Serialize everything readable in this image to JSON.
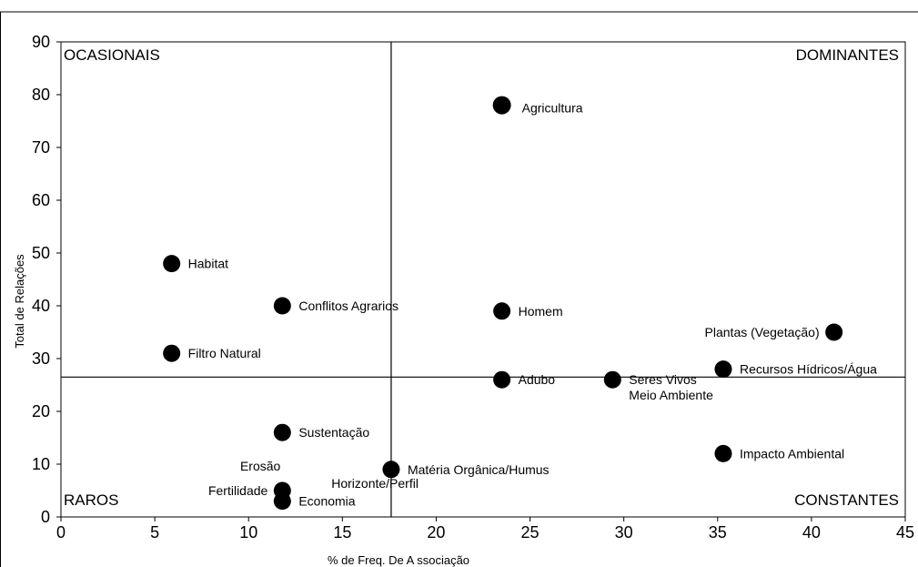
{
  "chart_data": {
    "type": "scatter",
    "xlabel": "% de  Freq. De A ssociação",
    "ylabel": "Total de Relações",
    "xlim": [
      0,
      45
    ],
    "ylim": [
      0,
      90
    ],
    "x_ticks": [
      "0",
      "5",
      "10",
      "15",
      "20",
      "25",
      "30",
      "35",
      "40",
      "45"
    ],
    "y_ticks": [
      "0",
      "10",
      "20",
      "30",
      "40",
      "50",
      "60",
      "70",
      "80",
      "90"
    ],
    "divider_x": 17.6,
    "divider_y": 26.5,
    "quadrants": {
      "top_left": "OCASIONAIS",
      "top_right": "DOMINANTES",
      "bottom_left": "RAROS",
      "bottom_right": "CONSTANTES"
    },
    "points": [
      {
        "label": "Agricultura",
        "x": 23.5,
        "y": 78,
        "label_pos": "right",
        "emphasis": true
      },
      {
        "label": "Habitat",
        "x": 5.9,
        "y": 48,
        "label_pos": "right"
      },
      {
        "label": "Conflitos Agrarios",
        "x": 11.8,
        "y": 40,
        "label_pos": "right"
      },
      {
        "label": "Homem",
        "x": 23.5,
        "y": 39,
        "label_pos": "right"
      },
      {
        "label": "Plantas (Vegetação)",
        "x": 41.2,
        "y": 35,
        "label_pos": "left"
      },
      {
        "label": "Filtro Natural",
        "x": 5.9,
        "y": 31,
        "label_pos": "right"
      },
      {
        "label": "Recursos Hídricos/Água",
        "x": 35.3,
        "y": 28,
        "label_pos": "right"
      },
      {
        "label": "Adubo",
        "x": 23.5,
        "y": 26,
        "label_pos": "right"
      },
      {
        "label": "Seres Vivos\nMeio Ambiente",
        "x": 29.4,
        "y": 26,
        "label_pos": "right"
      },
      {
        "label": "Sustentação",
        "x": 11.8,
        "y": 16,
        "label_pos": "right"
      },
      {
        "label": "Impacto Ambiental",
        "x": 35.3,
        "y": 12,
        "label_pos": "right"
      },
      {
        "label": "Matéria Orgânica/Humus",
        "x": 17.6,
        "y": 9,
        "label_pos": "right"
      },
      {
        "label": "Horizonte/Perfil",
        "x": 17.6,
        "y": 9,
        "label_pos": "below-left"
      },
      {
        "label": "Erosão",
        "x": 11.8,
        "y": 5,
        "label_pos": "above-left"
      },
      {
        "label": "Fertilidade",
        "x": 11.8,
        "y": 5,
        "label_pos": "left"
      },
      {
        "label": "Economia",
        "x": 11.8,
        "y": 3,
        "label_pos": "right"
      }
    ]
  }
}
